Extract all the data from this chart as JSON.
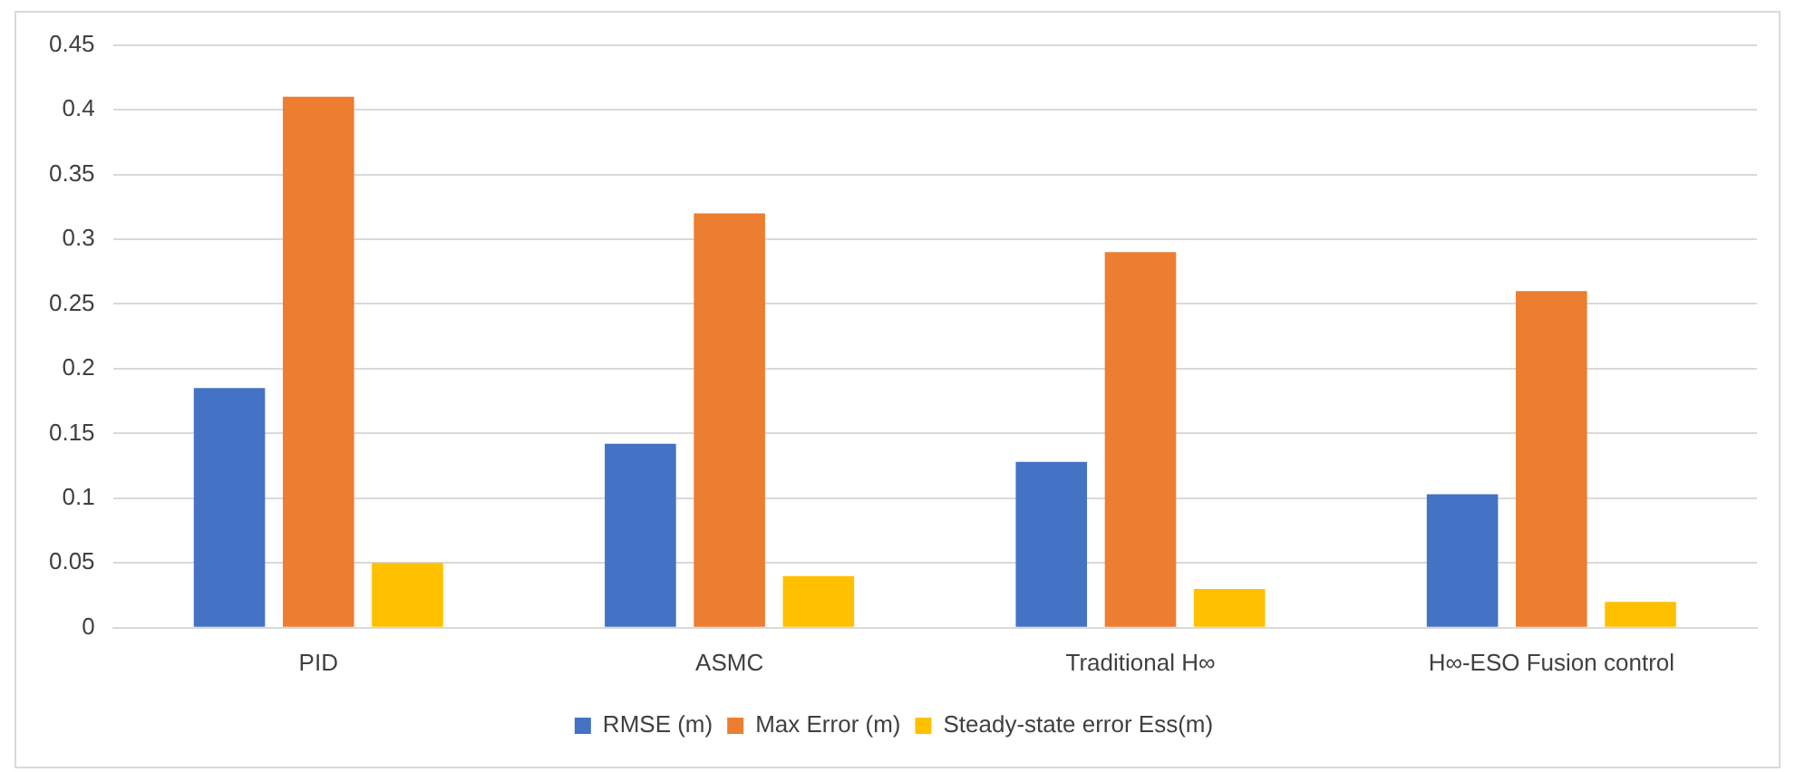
{
  "chart_data": {
    "type": "bar",
    "categories": [
      "PID",
      "ASMC",
      "Traditional H∞",
      "H∞-ESO Fusion control"
    ],
    "series": [
      {
        "name": "RMSE (m)",
        "color": "#4472c4",
        "values": [
          0.185,
          0.142,
          0.128,
          0.103
        ]
      },
      {
        "name": "Max Error (m)",
        "color": "#ed7d31",
        "values": [
          0.41,
          0.32,
          0.29,
          0.26
        ]
      },
      {
        "name": "Steady-state error Ess(m)",
        "color": "#ffc000",
        "values": [
          0.05,
          0.04,
          0.03,
          0.02
        ]
      }
    ],
    "ylim": [
      0,
      0.45
    ],
    "yticks": [
      0,
      0.05,
      0.1,
      0.15,
      0.2,
      0.25,
      0.3,
      0.35,
      0.4,
      0.45
    ],
    "grid": "y",
    "legend": "bottom"
  }
}
